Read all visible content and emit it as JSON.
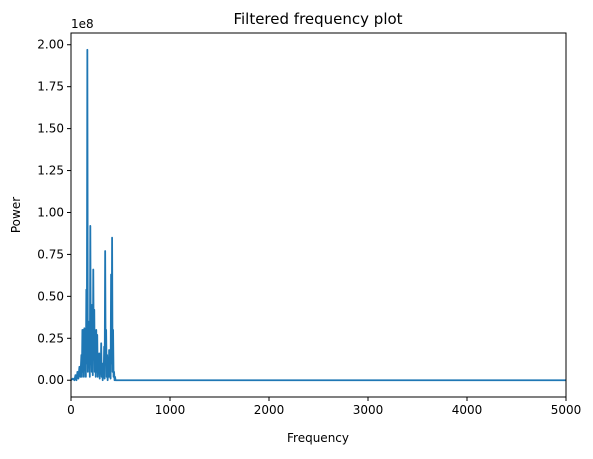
{
  "chart_data": {
    "type": "line",
    "title": "Filtered frequency plot",
    "xlabel": "Frequency",
    "ylabel": "Power",
    "y_multiplier_label": "1e8",
    "xlim": [
      0,
      5000
    ],
    "ylim": [
      -0.1,
      2.07
    ],
    "y_scale": 100000000,
    "grid": false,
    "line_color": "#1f77b4",
    "x_ticks": [
      {
        "value": 0,
        "label": "0"
      },
      {
        "value": 1000,
        "label": "1000"
      },
      {
        "value": 2000,
        "label": "2000"
      },
      {
        "value": 3000,
        "label": "3000"
      },
      {
        "value": 4000,
        "label": "4000"
      },
      {
        "value": 5000,
        "label": "5000"
      }
    ],
    "y_ticks": [
      {
        "value": 0,
        "label": "0.00"
      },
      {
        "value": 0.25,
        "label": "0.25"
      },
      {
        "value": 0.5,
        "label": "0.50"
      },
      {
        "value": 0.75,
        "label": "0.75"
      },
      {
        "value": 1.0,
        "label": "1.00"
      },
      {
        "value": 1.25,
        "label": "1.25"
      },
      {
        "value": 1.5,
        "label": "1.50"
      },
      {
        "value": 1.75,
        "label": "1.75"
      },
      {
        "value": 2.0,
        "label": "2.00"
      }
    ],
    "series": [
      {
        "x": [
          0,
          20,
          35,
          45,
          55,
          65,
          75,
          85,
          95,
          105,
          110,
          115,
          120,
          125,
          130,
          135,
          140,
          145,
          150,
          155,
          160,
          165,
          170,
          175,
          180,
          185,
          190,
          195,
          200,
          205,
          210,
          215,
          220,
          225,
          230,
          235,
          240,
          245,
          250,
          255,
          260,
          265,
          270,
          275,
          280,
          285,
          290,
          295,
          300,
          305,
          310,
          315,
          320,
          325,
          330,
          335,
          340,
          345,
          350,
          355,
          360,
          365,
          370,
          375,
          380,
          385,
          390,
          395,
          400,
          405,
          410,
          415,
          420,
          425,
          430,
          435,
          440,
          445,
          450,
          455,
          460,
          2000,
          5000
        ],
        "y": [
          0.0,
          0.01,
          0.0,
          0.03,
          0.0,
          0.05,
          0.01,
          0.08,
          0.02,
          0.15,
          0.02,
          0.3,
          0.05,
          0.3,
          0.02,
          0.31,
          0.1,
          0.2,
          0.02,
          0.54,
          0.1,
          1.97,
          0.05,
          0.35,
          0.08,
          0.22,
          0.02,
          0.92,
          0.1,
          0.22,
          0.05,
          0.45,
          0.03,
          0.66,
          0.15,
          0.42,
          0.05,
          0.2,
          0.02,
          0.3,
          0.05,
          0.27,
          0.02,
          0.12,
          0.05,
          0.16,
          0.01,
          0.1,
          0.04,
          0.22,
          0.02,
          0.1,
          0.0,
          0.06,
          0.02,
          0.2,
          0.01,
          0.77,
          0.1,
          0.3,
          0.02,
          0.15,
          0.0,
          0.08,
          0.02,
          0.18,
          0.02,
          0.05,
          0.01,
          0.63,
          0.1,
          0.85,
          0.05,
          0.3,
          0.02,
          0.05,
          0.0,
          0.02,
          0.0,
          0.0,
          0.0,
          0.0,
          0.0
        ]
      }
    ]
  }
}
